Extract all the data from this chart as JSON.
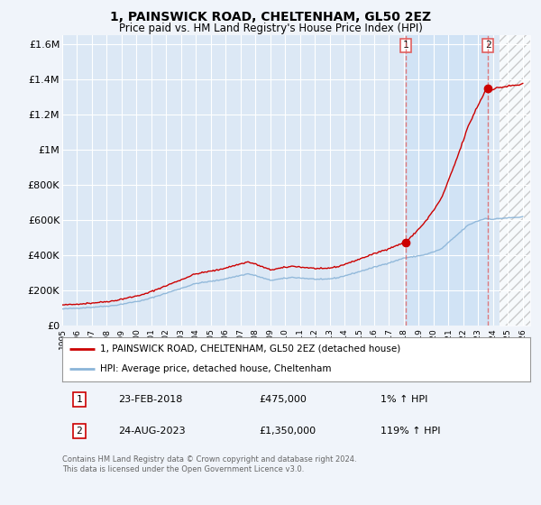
{
  "title": "1, PAINSWICK ROAD, CHELTENHAM, GL50 2EZ",
  "subtitle": "Price paid vs. HM Land Registry's House Price Index (HPI)",
  "ylabel_ticks": [
    "£0",
    "£200K",
    "£400K",
    "£600K",
    "£800K",
    "£1M",
    "£1.2M",
    "£1.4M",
    "£1.6M"
  ],
  "ylabel_values": [
    0,
    200000,
    400000,
    600000,
    800000,
    1000000,
    1200000,
    1400000,
    1600000
  ],
  "ylim": [
    0,
    1650000
  ],
  "xlim_start": 1995.0,
  "xlim_end": 2026.5,
  "background_color": "#f0f4fa",
  "plot_bg_color": "#dce8f5",
  "highlight_bg_color": "#c8dff5",
  "grid_color": "#ffffff",
  "hpi_color": "#8ab4d8",
  "price_color": "#cc0000",
  "dashed_line_color": "#e06060",
  "transaction1_date": "23-FEB-2018",
  "transaction1_price": 475000,
  "transaction1_hpi_pct": "1%",
  "transaction1_x": 2018.14,
  "transaction2_date": "24-AUG-2023",
  "transaction2_price": 1350000,
  "transaction2_hpi_pct": "119%",
  "transaction2_x": 2023.65,
  "legend_line1": "1, PAINSWICK ROAD, CHELTENHAM, GL50 2EZ (detached house)",
  "legend_line2": "HPI: Average price, detached house, Cheltenham",
  "footnote": "Contains HM Land Registry data © Crown copyright and database right 2024.\nThis data is licensed under the Open Government Licence v3.0."
}
